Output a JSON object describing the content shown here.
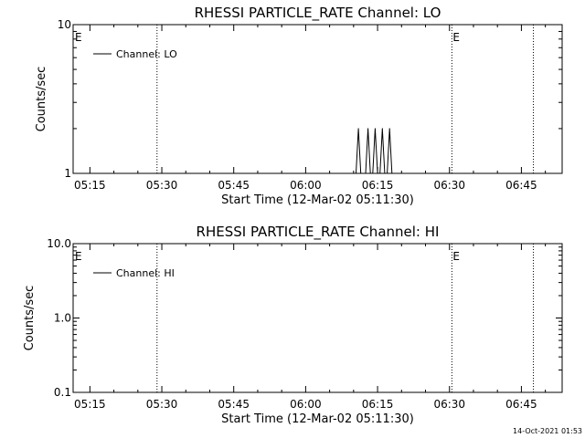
{
  "chart_data": [
    {
      "type": "line",
      "title": "RHESSI PARTICLE_RATE Channel: LO",
      "xlabel": "Start Time (12-Mar-02 05:11:30)",
      "ylabel": "Counts/sec",
      "yscale": "log",
      "xlim": [
        "05:11:30",
        "06:53:30"
      ],
      "ylim": [
        1,
        10
      ],
      "x_ticks": [
        "05:15",
        "05:30",
        "05:45",
        "06:00",
        "06:15",
        "06:30",
        "06:45"
      ],
      "y_ticks": [
        "1",
        "10"
      ],
      "legend": {
        "placement": "top-left",
        "entries": [
          "Channel: LO"
        ]
      },
      "event_lines": [
        {
          "time": "05:29:00",
          "label": ""
        },
        {
          "time": "06:30:30",
          "label": "E"
        },
        {
          "time": "06:47:30",
          "label": ""
        }
      ],
      "start_marker": "E",
      "series": [
        {
          "name": "Channel: LO",
          "points": [
            [
              "06:10:30",
              1
            ],
            [
              "06:11:00",
              2
            ],
            [
              "06:11:30",
              1
            ],
            [
              "06:12:30",
              1
            ],
            [
              "06:13:00",
              2
            ],
            [
              "06:13:30",
              1
            ],
            [
              "06:14:00",
              1
            ],
            [
              "06:14:30",
              2
            ],
            [
              "06:15:00",
              1
            ],
            [
              "06:15:30",
              1
            ],
            [
              "06:16:00",
              2
            ],
            [
              "06:16:30",
              1
            ],
            [
              "06:17:00",
              1
            ],
            [
              "06:17:30",
              2
            ],
            [
              "06:18:00",
              1
            ]
          ]
        }
      ]
    },
    {
      "type": "line",
      "title": "RHESSI PARTICLE_RATE Channel: HI",
      "xlabel": "Start Time (12-Mar-02 05:11:30)",
      "ylabel": "Counts/sec",
      "yscale": "log",
      "xlim": [
        "05:11:30",
        "06:53:30"
      ],
      "ylim": [
        0.1,
        10
      ],
      "x_ticks": [
        "05:15",
        "05:30",
        "05:45",
        "06:00",
        "06:15",
        "06:30",
        "06:45"
      ],
      "y_ticks": [
        "0.1",
        "1.0",
        "10.0"
      ],
      "legend": {
        "placement": "top-left",
        "entries": [
          "Channel: HI"
        ]
      },
      "event_lines": [
        {
          "time": "05:29:00",
          "label": ""
        },
        {
          "time": "06:30:30",
          "label": "E"
        },
        {
          "time": "06:47:30",
          "label": ""
        }
      ],
      "start_marker": "E",
      "series": [
        {
          "name": "Channel: HI",
          "points": []
        }
      ]
    }
  ],
  "footer": {
    "timestamp": "14-Oct-2021 01:53"
  }
}
